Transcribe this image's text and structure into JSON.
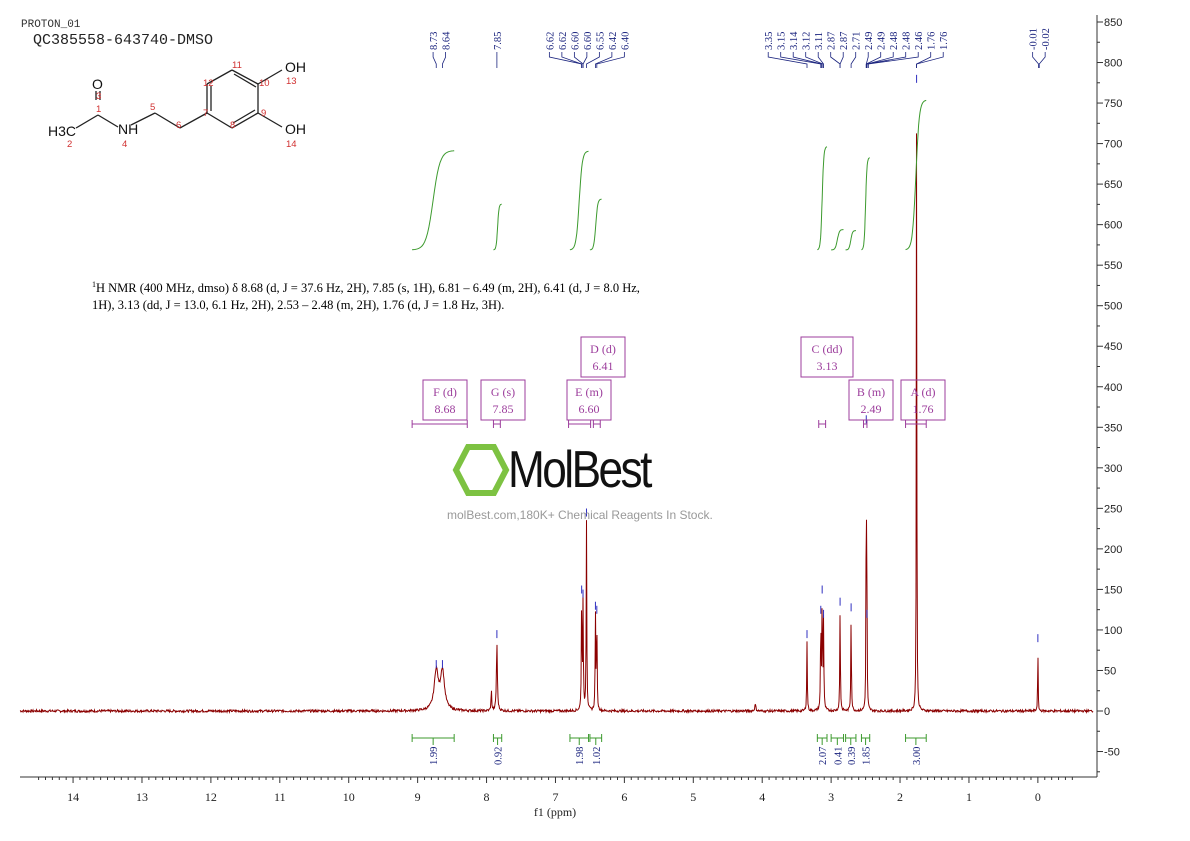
{
  "header": {
    "experiment": "PROTON_01",
    "sample": "QC385558-643740-DMSO"
  },
  "structure": {
    "atoms": {
      "o": "O",
      "ch3": "H3C",
      "nh": "NH",
      "oh1": "OH",
      "oh2": "OH"
    },
    "numbers": [
      "1",
      "2",
      "3",
      "4",
      "5",
      "6",
      "7",
      "8",
      "9",
      "10",
      "11",
      "12",
      "13",
      "14"
    ]
  },
  "description": {
    "prefix_sup": "1",
    "text": "H NMR (400 MHz, dmso) δ 8.68 (d, J = 37.6 Hz, 2H), 7.85 (s, 1H), 6.81 – 6.49 (m, 2H), 6.41 (d, J = 8.0 Hz, 1H), 3.13 (dd, J = 13.0, 6.1 Hz, 2H), 2.53 – 2.48 (m, 2H), 1.76 (d, J = 1.8 Hz, 3H)."
  },
  "watermark": {
    "brand": "MolBest",
    "tagline": "molBest.com,180K+ Chemical Reagents In Stock.",
    "brand_color": "#7dc242"
  },
  "colors": {
    "spectrum": "#8b0000",
    "peak_labels": "#1a237e",
    "integrals": "#3c9a2e",
    "multiplets": "#9c3d9c",
    "axis": "#333333"
  },
  "chart_data": {
    "type": "line",
    "xlabel": "f1 (ppm)",
    "xlim": [
      14.77,
      -0.8
    ],
    "x_reversed": true,
    "ylim": [
      -80,
      850
    ],
    "x_ticks": [
      14,
      13,
      12,
      11,
      10,
      9,
      8,
      7,
      6,
      5,
      4,
      3,
      2,
      1,
      0
    ],
    "y_ticks": [
      850,
      800,
      750,
      700,
      650,
      600,
      550,
      500,
      450,
      400,
      350,
      300,
      250,
      200,
      150,
      100,
      50,
      0,
      -50
    ],
    "grid": false,
    "peaks": [
      {
        "ppm": 8.73,
        "height": 48,
        "width": 0.035
      },
      {
        "ppm": 8.64,
        "height": 48,
        "width": 0.035
      },
      {
        "ppm": 7.93,
        "height": 25,
        "width": 0.006
      },
      {
        "ppm": 7.85,
        "height": 85,
        "width": 0.008
      },
      {
        "ppm": 6.62,
        "height": 140,
        "width": 0.005
      },
      {
        "ppm": 6.6,
        "height": 135,
        "width": 0.005
      },
      {
        "ppm": 6.55,
        "height": 235,
        "width": 0.005
      },
      {
        "ppm": 6.42,
        "height": 120,
        "width": 0.005
      },
      {
        "ppm": 6.4,
        "height": 115,
        "width": 0.005
      },
      {
        "ppm": 4.1,
        "height": 8,
        "width": 0.01
      },
      {
        "ppm": 3.35,
        "height": 85,
        "width": 0.005
      },
      {
        "ppm": 3.15,
        "height": 115,
        "width": 0.005
      },
      {
        "ppm": 3.13,
        "height": 140,
        "width": 0.005
      },
      {
        "ppm": 3.11,
        "height": 110,
        "width": 0.005
      },
      {
        "ppm": 2.87,
        "height": 125,
        "width": 0.005
      },
      {
        "ppm": 2.71,
        "height": 118,
        "width": 0.005
      },
      {
        "ppm": 2.49,
        "height": 350,
        "width": 0.004
      },
      {
        "ppm": 2.48,
        "height": 110,
        "width": 0.004
      },
      {
        "ppm": 1.76,
        "height": 770,
        "width": 0.004
      },
      {
        "ppm": 0.0,
        "height": 80,
        "width": 0.004
      }
    ],
    "peak_labels": [
      {
        "group": [
          "8.73",
          "8.64"
        ]
      },
      {
        "group": [
          "7.85"
        ]
      },
      {
        "group": [
          "6.62",
          "6.62",
          "6.60",
          "6.60",
          "6.55",
          "6.42",
          "6.40"
        ]
      },
      {
        "group": [
          "3.35",
          "3.15",
          "3.14",
          "3.12",
          "3.11",
          "2.87",
          "2.87",
          "2.71",
          "2.49",
          "2.49",
          "2.48",
          "2.48",
          "2.46"
        ]
      },
      {
        "group": [
          "1.76",
          "1.76"
        ]
      },
      {
        "group": [
          "-0.01",
          "-0.02"
        ]
      }
    ],
    "integrals": [
      {
        "from": 9.08,
        "to": 8.47,
        "value": "1.99"
      },
      {
        "from": 7.9,
        "to": 7.78,
        "value": "0.92"
      },
      {
        "from": 6.79,
        "to": 6.52,
        "value": "1.98"
      },
      {
        "from": 6.5,
        "to": 6.33,
        "value": "1.02"
      },
      {
        "from": 3.2,
        "to": 3.06,
        "value": "2.07"
      },
      {
        "from": 3.0,
        "to": 2.82,
        "value": "0.41"
      },
      {
        "from": 2.79,
        "to": 2.64,
        "value": "0.39"
      },
      {
        "from": 2.56,
        "to": 2.44,
        "value": "1.85"
      },
      {
        "from": 1.92,
        "to": 1.62,
        "value": "3.00"
      }
    ],
    "multiplets": [
      {
        "id": "F",
        "type": "d",
        "shift": "8.68",
        "from": 9.08,
        "to": 8.28
      },
      {
        "id": "G",
        "type": "s",
        "shift": "7.85",
        "from": 7.9,
        "to": 7.8
      },
      {
        "id": "D",
        "type": "d",
        "shift": "6.41",
        "from": 6.45,
        "to": 6.35
      },
      {
        "id": "E",
        "type": "m",
        "shift": "6.60",
        "from": 6.81,
        "to": 6.49
      },
      {
        "id": "C",
        "type": "dd",
        "shift": "3.13",
        "from": 3.18,
        "to": 3.08
      },
      {
        "id": "B",
        "type": "m",
        "shift": "2.49",
        "from": 2.53,
        "to": 2.48
      },
      {
        "id": "A",
        "type": "d",
        "shift": "1.76",
        "from": 1.92,
        "to": 1.62
      }
    ]
  }
}
